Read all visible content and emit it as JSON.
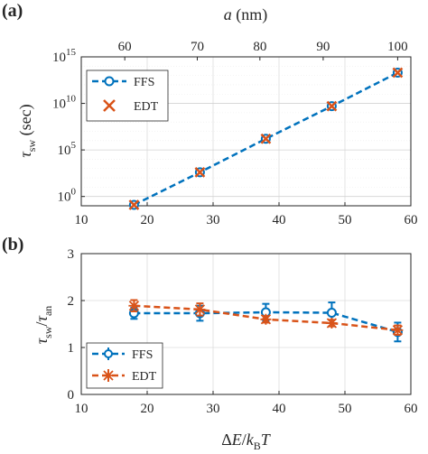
{
  "chart_data": [
    {
      "panel_label": "(a)",
      "type": "line",
      "yscale": "log",
      "xlabel": "ΔE/k_BT",
      "ylabel": "τ_sw (sec)",
      "x_top_label": "a (nm)",
      "xlim": [
        10,
        60
      ],
      "ylim_log10": [
        -1,
        15
      ],
      "x_ticks": [
        10,
        20,
        30,
        40,
        50,
        60
      ],
      "x_top_ticks": [
        60,
        70,
        80,
        90,
        100
      ],
      "x_top_tick_positions": [
        16.6,
        27.6,
        37.1,
        46.7,
        58.0
      ],
      "y_ticks_log10": [
        0,
        5,
        10,
        15
      ],
      "y_tick_labels": [
        "10",
        "10",
        "10",
        "10"
      ],
      "y_tick_exponents": [
        "0",
        "5",
        "10",
        "15"
      ],
      "grid": true,
      "legend_position": "top-left",
      "series": [
        {
          "name": "FFS",
          "color": "#0072BD",
          "marker": "circle",
          "line": "dashed",
          "x": [
            18,
            28,
            38,
            48,
            58
          ],
          "y_log10": [
            -0.9,
            2.6,
            6.2,
            9.7,
            13.3
          ]
        },
        {
          "name": "EDT",
          "color": "#D95319",
          "marker": "x",
          "line": "none",
          "x": [
            18,
            28,
            38,
            48,
            58
          ],
          "y_log10": [
            -0.9,
            2.6,
            6.2,
            9.7,
            13.3
          ]
        }
      ]
    },
    {
      "panel_label": "(b)",
      "type": "line",
      "xlabel": "ΔE/k_BT",
      "ylabel": "τ_sw/τ_an",
      "xlim": [
        10,
        60
      ],
      "ylim": [
        0,
        3
      ],
      "x_ticks": [
        10,
        20,
        30,
        40,
        50,
        60
      ],
      "y_ticks": [
        0,
        1,
        2,
        3
      ],
      "grid": true,
      "legend_position": "bottom-left",
      "series": [
        {
          "name": "FFS",
          "color": "#0072BD",
          "marker": "circle",
          "line": "dashed",
          "x": [
            18,
            28,
            38,
            48,
            58
          ],
          "y": [
            1.73,
            1.73,
            1.75,
            1.74,
            1.33
          ],
          "err": [
            0.12,
            0.16,
            0.18,
            0.22,
            0.2
          ]
        },
        {
          "name": "EDT",
          "color": "#D95319",
          "marker": "star",
          "line": "dashed",
          "x": [
            18,
            28,
            38,
            48,
            58
          ],
          "y": [
            1.89,
            1.81,
            1.6,
            1.52,
            1.37
          ],
          "err": [
            0.12,
            0.13,
            0.07,
            0.07,
            0.1
          ]
        }
      ]
    }
  ]
}
